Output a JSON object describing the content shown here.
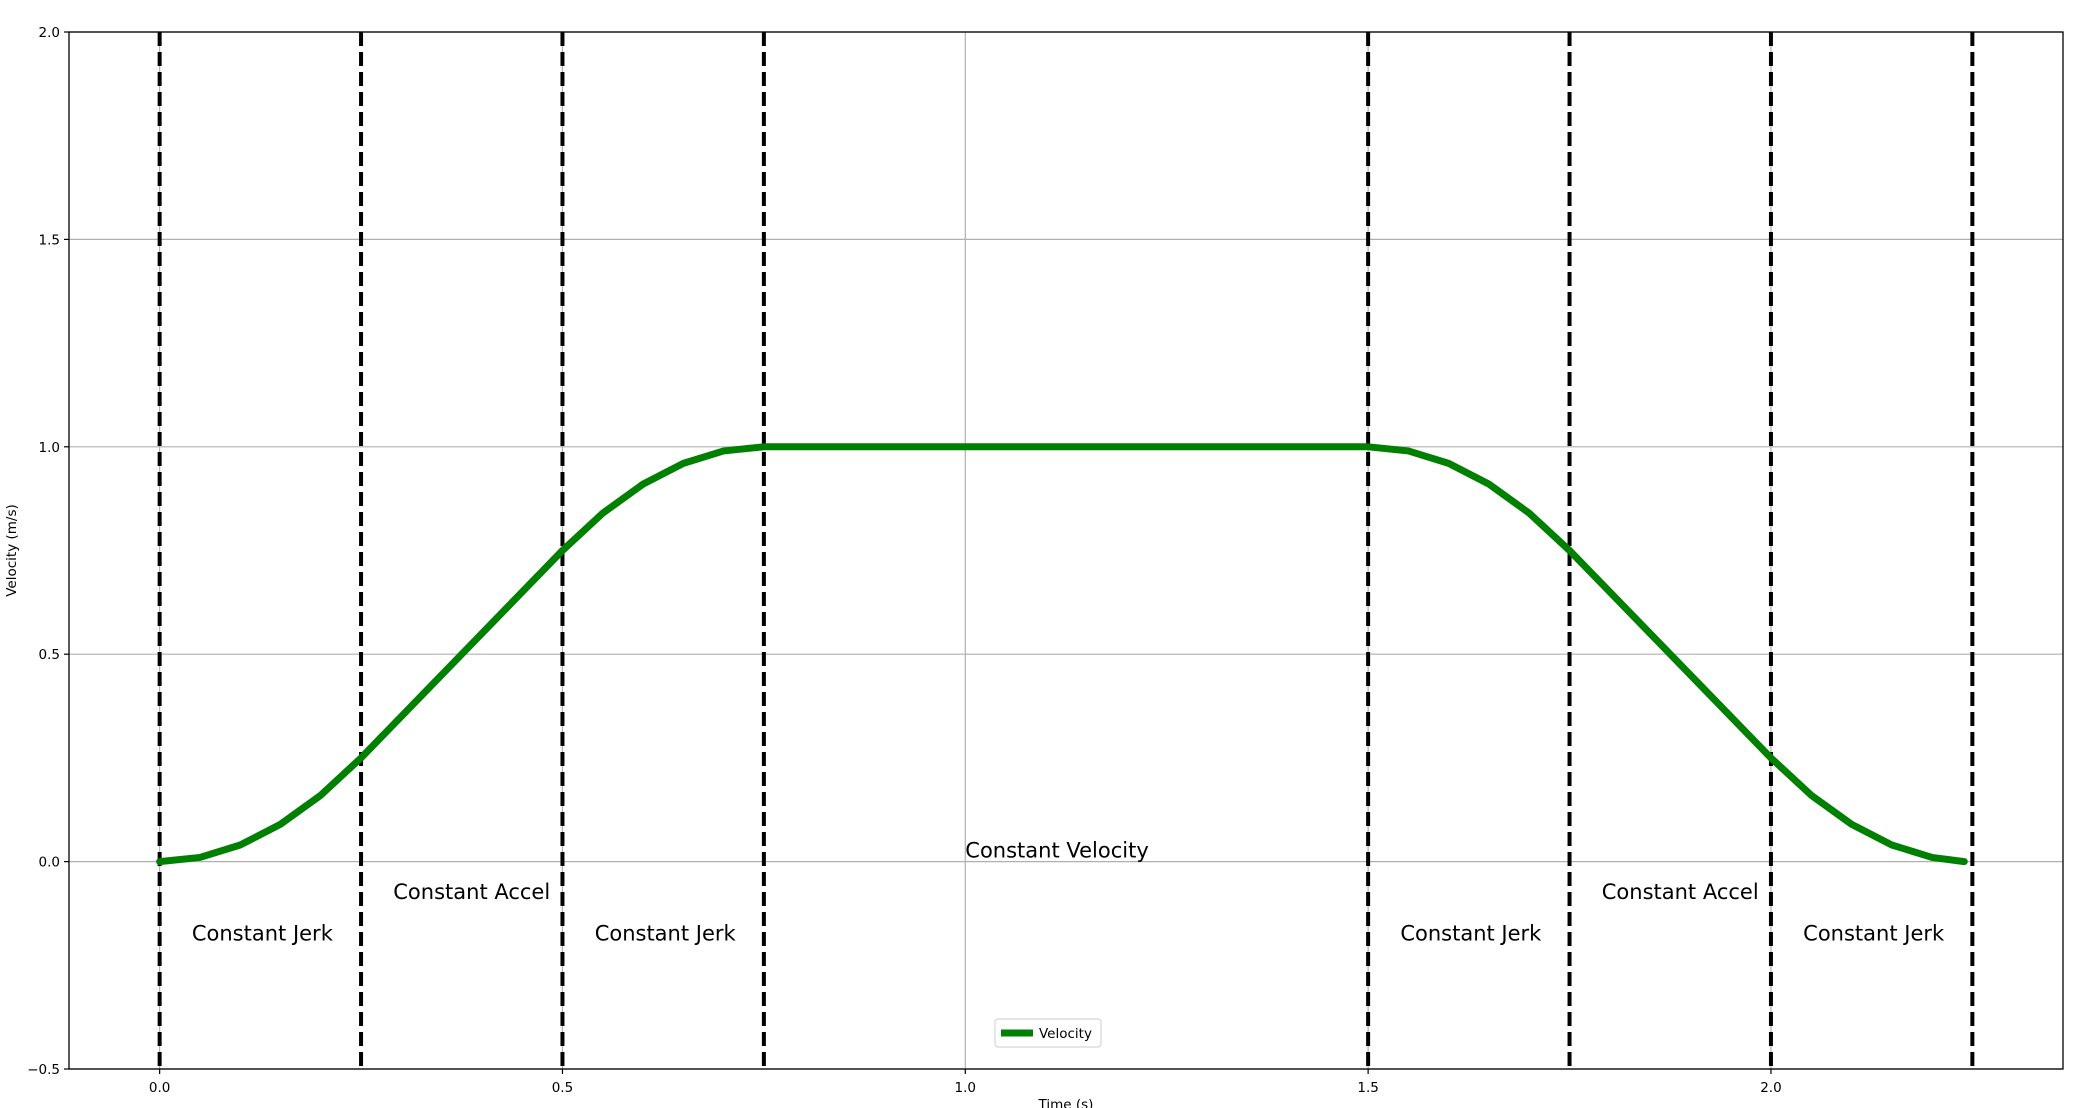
{
  "chart_data": {
    "type": "line",
    "xlabel": "Time (s)",
    "ylabel": "Velocity (m/s)",
    "xlim": [
      -0.1125,
      2.3625
    ],
    "ylim": [
      -0.5,
      2.0
    ],
    "x_ticks": [
      0.0,
      0.5,
      1.0,
      1.5,
      2.0
    ],
    "x_tick_labels": [
      "0.0",
      "0.5",
      "1.0",
      "1.5",
      "2.0"
    ],
    "y_ticks": [
      -0.5,
      0.0,
      0.5,
      1.0,
      1.5,
      2.0
    ],
    "y_tick_labels": [
      "−0.5",
      "0.0",
      "0.5",
      "1.0",
      "1.5",
      "2.0"
    ],
    "grid": true,
    "series": [
      {
        "name": "Velocity",
        "color": "#008000",
        "x": [
          0.0,
          0.05,
          0.1,
          0.15,
          0.2,
          0.25,
          0.3,
          0.35,
          0.4,
          0.45,
          0.5,
          0.55,
          0.6,
          0.65,
          0.7,
          0.75,
          1.0,
          1.25,
          1.5,
          1.55,
          1.6,
          1.65,
          1.7,
          1.75,
          1.8,
          1.85,
          1.9,
          1.95,
          2.0,
          2.05,
          2.1,
          2.15,
          2.2,
          2.24
        ],
        "y": [
          0.0,
          0.01,
          0.04,
          0.09,
          0.16,
          0.25,
          0.35,
          0.45,
          0.55,
          0.65,
          0.75,
          0.84,
          0.91,
          0.96,
          0.99,
          1.0,
          1.0,
          1.0,
          1.0,
          0.99,
          0.96,
          0.91,
          0.84,
          0.75,
          0.65,
          0.55,
          0.45,
          0.35,
          0.25,
          0.16,
          0.09,
          0.04,
          0.01,
          0.0
        ]
      }
    ],
    "phase_boundaries": [
      0.0,
      0.25,
      0.5,
      0.75,
      1.5,
      1.75,
      2.0,
      2.25
    ],
    "boundary_color": "#000000",
    "annotations": [
      {
        "text": "Constant Jerk",
        "x": 0.04,
        "y": -0.19
      },
      {
        "text": "Constant Accel",
        "x": 0.29,
        "y": -0.09
      },
      {
        "text": "Constant Jerk",
        "x": 0.54,
        "y": -0.19
      },
      {
        "text": "Constant Velocity",
        "x": 1.0,
        "y": 0.01
      },
      {
        "text": "Constant Jerk",
        "x": 1.54,
        "y": -0.19
      },
      {
        "text": "Constant Accel",
        "x": 1.79,
        "y": -0.09
      },
      {
        "text": "Constant Jerk",
        "x": 2.04,
        "y": -0.19
      }
    ],
    "legend": {
      "position": "lower-center",
      "entries": [
        "Velocity"
      ]
    }
  }
}
